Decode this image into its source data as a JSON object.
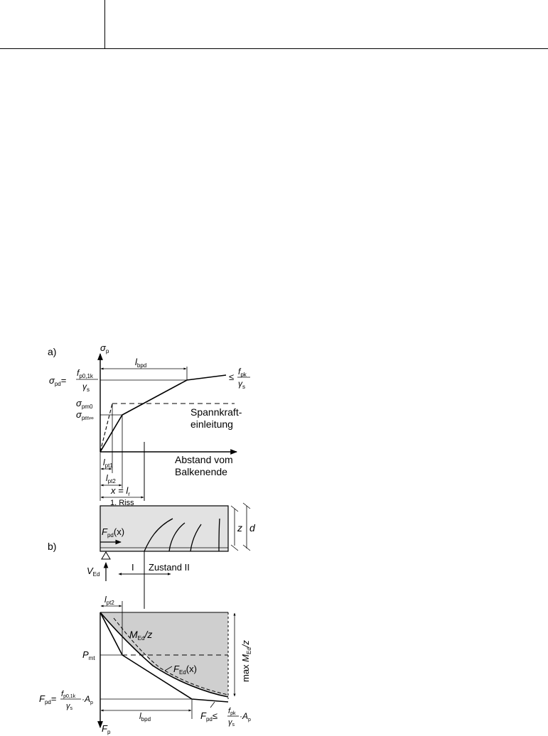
{
  "panel_a": {
    "label": "a)",
    "y_axis": "σ",
    "y_axis_sub": "p",
    "x_axis": [
      "Abstand vom",
      "Balkenende"
    ],
    "sigma_pd": {
      "sym": "σ",
      "sub": "pd",
      "num": "f",
      "num_sub": "p0,1k",
      "den": "γ",
      "den_sub": "s"
    },
    "limit": {
      "rel": "≤",
      "num": "f",
      "num_sub": "pk",
      "den": "γ",
      "den_sub": "s"
    },
    "sigma_pm0": {
      "sym": "σ",
      "sub": "pm0"
    },
    "sigma_pminf": {
      "sym": "σ",
      "sub": "pm∞"
    },
    "l_bpd": {
      "sym": "l",
      "sub": "bpd"
    },
    "l_pt1": {
      "sym": "l",
      "sub": "pt1"
    },
    "l_pt2": {
      "sym": "l",
      "sub": "pt2"
    },
    "spannkraft": [
      "Spannkraft-",
      "einleitung"
    ],
    "x_lr": "x = l",
    "x_lr_sub": "r",
    "riss": "1. Riss"
  },
  "panel_b": {
    "label": "b)",
    "z": "z",
    "d": "d",
    "F_pd_x": {
      "sym": "F",
      "sub": "pd",
      "arg": "(x)"
    },
    "V_Ed": {
      "sym": "V",
      "sub": "Ed"
    },
    "zustand_I": "I",
    "zustand_II": "Zustand II",
    "l_pt2": {
      "sym": "l",
      "sub": "pt2"
    },
    "M_Ed_z": {
      "sym": "M",
      "sub": "Ed",
      "tail": "/z"
    },
    "max_M_Ed_z": {
      "pre": "max ",
      "sym": "M",
      "sub": "Ed",
      "tail": "/z"
    },
    "P_mt": {
      "sym": "P",
      "sub": "mt"
    },
    "F_Ed_x": {
      "sym": "F",
      "sub": "Ed",
      "arg": "(x)"
    },
    "F_pd_left": {
      "sym": "F",
      "sub": "pd",
      "eq": "=",
      "num": "f",
      "num_sub": "p0,1k",
      "den": "γ",
      "den_sub": "s",
      "tail": "·A",
      "tail_sub": "p"
    },
    "l_bpd": {
      "sym": "l",
      "sub": "bpd"
    },
    "F_pd_right": {
      "sym": "F",
      "sub": "pd",
      "rel": "≤",
      "num": "f",
      "num_sub": "pk",
      "den": "γ",
      "den_sub": "s",
      "tail": "·A",
      "tail_sub": "p"
    },
    "F_p": {
      "sym": "F",
      "sub": "p"
    }
  }
}
